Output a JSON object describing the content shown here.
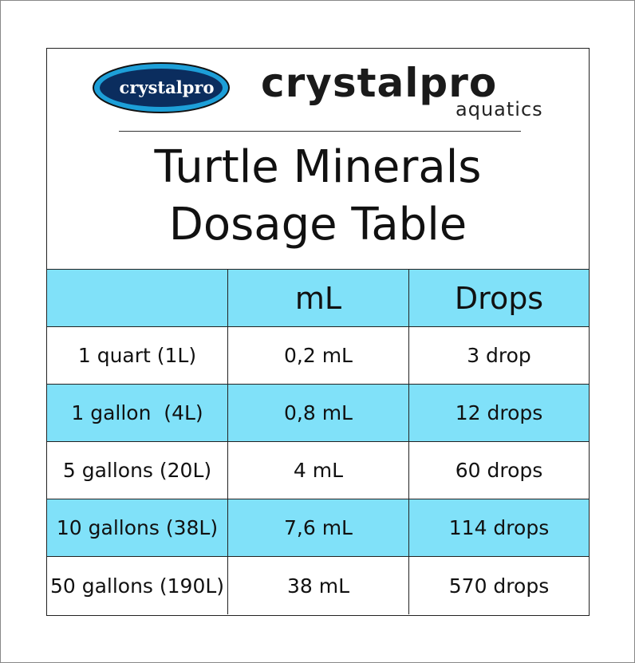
{
  "logo": {
    "badge_text": "crystalpro"
  },
  "brand": {
    "name": "crystalpro",
    "tagline": "aquatics"
  },
  "title": {
    "line1": "Turtle Minerals",
    "line2": "Dosage Table"
  },
  "table": {
    "columns": [
      "mL",
      "Drops"
    ],
    "rows": [
      [
        "1 quart (1L)",
        "0,2 mL",
        "3 drop"
      ],
      [
        "1 gallon  (4L)",
        "0,8 mL",
        "12 drops"
      ],
      [
        "5 gallons (20L)",
        "4 mL",
        "60 drops"
      ],
      [
        "10 gallons (38L)",
        "7,6 mL",
        "114 drops"
      ],
      [
        "50 gallons (190L)",
        "38 mL",
        "570 drops"
      ]
    ]
  }
}
